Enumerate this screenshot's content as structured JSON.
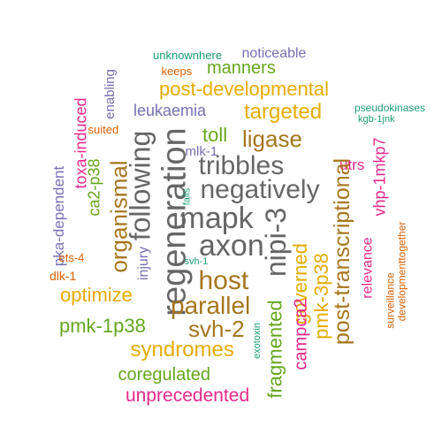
{
  "words": [
    {
      "text": "unknownhere",
      "color": "#1b9e77",
      "vertical": false
    },
    {
      "text": "noticeable",
      "color": "#7570b3",
      "vertical": false
    },
    {
      "text": "keeps",
      "color": "#d95f02",
      "vertical": false
    },
    {
      "text": "manners",
      "color": "#66a61e",
      "vertical": false
    },
    {
      "text": "enabling",
      "color": "#7570b3",
      "vertical": true
    },
    {
      "text": "post-developmental",
      "color": "#e6ab02",
      "vertical": false
    },
    {
      "text": "leukaemia",
      "color": "#7570b3",
      "vertical": false
    },
    {
      "text": "targeted",
      "color": "#e6ab02",
      "vertical": false
    },
    {
      "text": "pseudokinases",
      "color": "#1b9e77",
      "vertical": false
    },
    {
      "text": "kgb-1jnk",
      "color": "#1b9e77",
      "vertical": false
    },
    {
      "text": "toxa-induced",
      "color": "#e7298a",
      "vertical": true
    },
    {
      "text": "suited",
      "color": "#d95f02",
      "vertical": false
    },
    {
      "text": "toll",
      "color": "#66a61e",
      "vertical": false
    },
    {
      "text": "ligase",
      "color": "#a6761d",
      "vertical": false
    },
    {
      "text": "mlk-1",
      "color": "#7570b3",
      "vertical": false
    },
    {
      "text": "vhp-1mkp7",
      "color": "#e7298a",
      "vertical": true
    },
    {
      "text": "following",
      "color": "#666666",
      "vertical": true
    },
    {
      "text": "regeneration",
      "color": "#666666",
      "vertical": true
    },
    {
      "text": "tribbles",
      "color": "#666666",
      "vertical": false
    },
    {
      "text": "utrs",
      "color": "#e7298a",
      "vertical": false
    },
    {
      "text": "ca2-p38",
      "color": "#66a61e",
      "vertical": true
    },
    {
      "text": "organismal",
      "color": "#a6761d",
      "vertical": true
    },
    {
      "text": "negatively",
      "color": "#666666",
      "vertical": false
    },
    {
      "text": "fails",
      "color": "#1b9e77",
      "vertical": true
    },
    {
      "text": "post-transcriptional",
      "color": "#a6761d",
      "vertical": true
    },
    {
      "text": "pka-dependent",
      "color": "#7570b3",
      "vertical": true
    },
    {
      "text": "mapk",
      "color": "#666666",
      "vertical": false
    },
    {
      "text": "nipi-3",
      "color": "#666666",
      "vertical": true
    },
    {
      "text": "relevance",
      "color": "#e7298a",
      "vertical": true
    },
    {
      "text": "ets-4",
      "color": "#d95f02",
      "vertical": false
    },
    {
      "text": "axon",
      "color": "#666666",
      "vertical": false
    },
    {
      "text": "dlk-1",
      "color": "#d95f02",
      "vertical": false
    },
    {
      "text": "svh-1",
      "color": "#1b9e77",
      "vertical": false
    },
    {
      "text": "injury",
      "color": "#7570b3",
      "vertical": true
    },
    {
      "text": "host",
      "color": "#a6761d",
      "vertical": false
    },
    {
      "text": "surveillance",
      "color": "#d95f02",
      "vertical": true
    },
    {
      "text": "developmenttogether",
      "color": "#d95f02",
      "vertical": true
    },
    {
      "text": "optimize",
      "color": "#e6ab02",
      "vertical": false
    },
    {
      "text": "governed",
      "color": "#e6ab02",
      "vertical": true
    },
    {
      "text": "parallel",
      "color": "#a6761d",
      "vertical": false
    },
    {
      "text": "pmk-3p38",
      "color": "#e6ab02",
      "vertical": true
    },
    {
      "text": "pmk-1p38",
      "color": "#66a61e",
      "vertical": false
    },
    {
      "text": "svh-2",
      "color": "#a6761d",
      "vertical": false
    },
    {
      "text": "syndromes",
      "color": "#e6ab02",
      "vertical": false
    },
    {
      "text": "campca2",
      "color": "#e7298a",
      "vertical": true
    },
    {
      "text": "exotoxin",
      "color": "#1b9e77",
      "vertical": true
    },
    {
      "text": "fragmented",
      "color": "#66a61e",
      "vertical": true
    },
    {
      "text": "coregulated",
      "color": "#66a61e",
      "vertical": false
    },
    {
      "text": "unprecedented",
      "color": "#e7298a",
      "vertical": false
    }
  ]
}
